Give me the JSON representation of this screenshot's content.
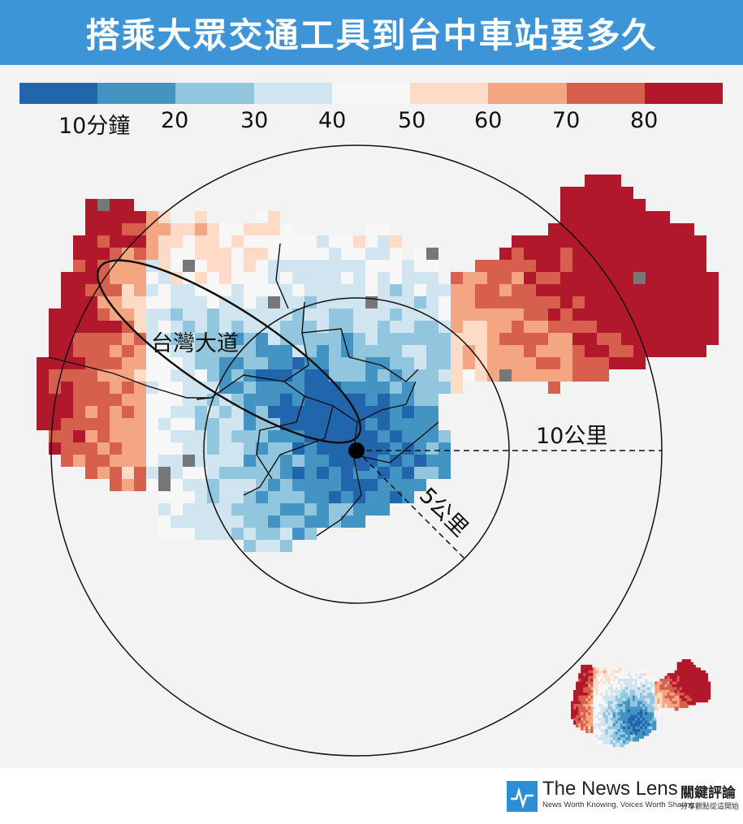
{
  "title": "搭乘大眾交通工具到台中車站要多久",
  "legend": {
    "colors": [
      "#2166ac",
      "#4393c3",
      "#92c5de",
      "#d1e5f0",
      "#f7f7f7",
      "#fddbc7",
      "#f4a582",
      "#d6604d",
      "#b2182b"
    ],
    "labels": [
      "10分鐘",
      "20",
      "30",
      "40",
      "50",
      "60",
      "70",
      "80"
    ]
  },
  "map": {
    "colors": {
      "no_data": "#777777",
      "background": "#f3f3f3"
    },
    "annotations": {
      "road": "台灣大道",
      "ring_10km": "10公里",
      "ring_5km": "5公里"
    }
  },
  "brand": {
    "name": "The News Lens",
    "name_cn": "關鍵評論",
    "tagline": "News Worth Knowing, Voices Worth Sharing",
    "tagline_cn": "分享觀點從這開始",
    "logo_color": "#2a8fd6"
  }
}
